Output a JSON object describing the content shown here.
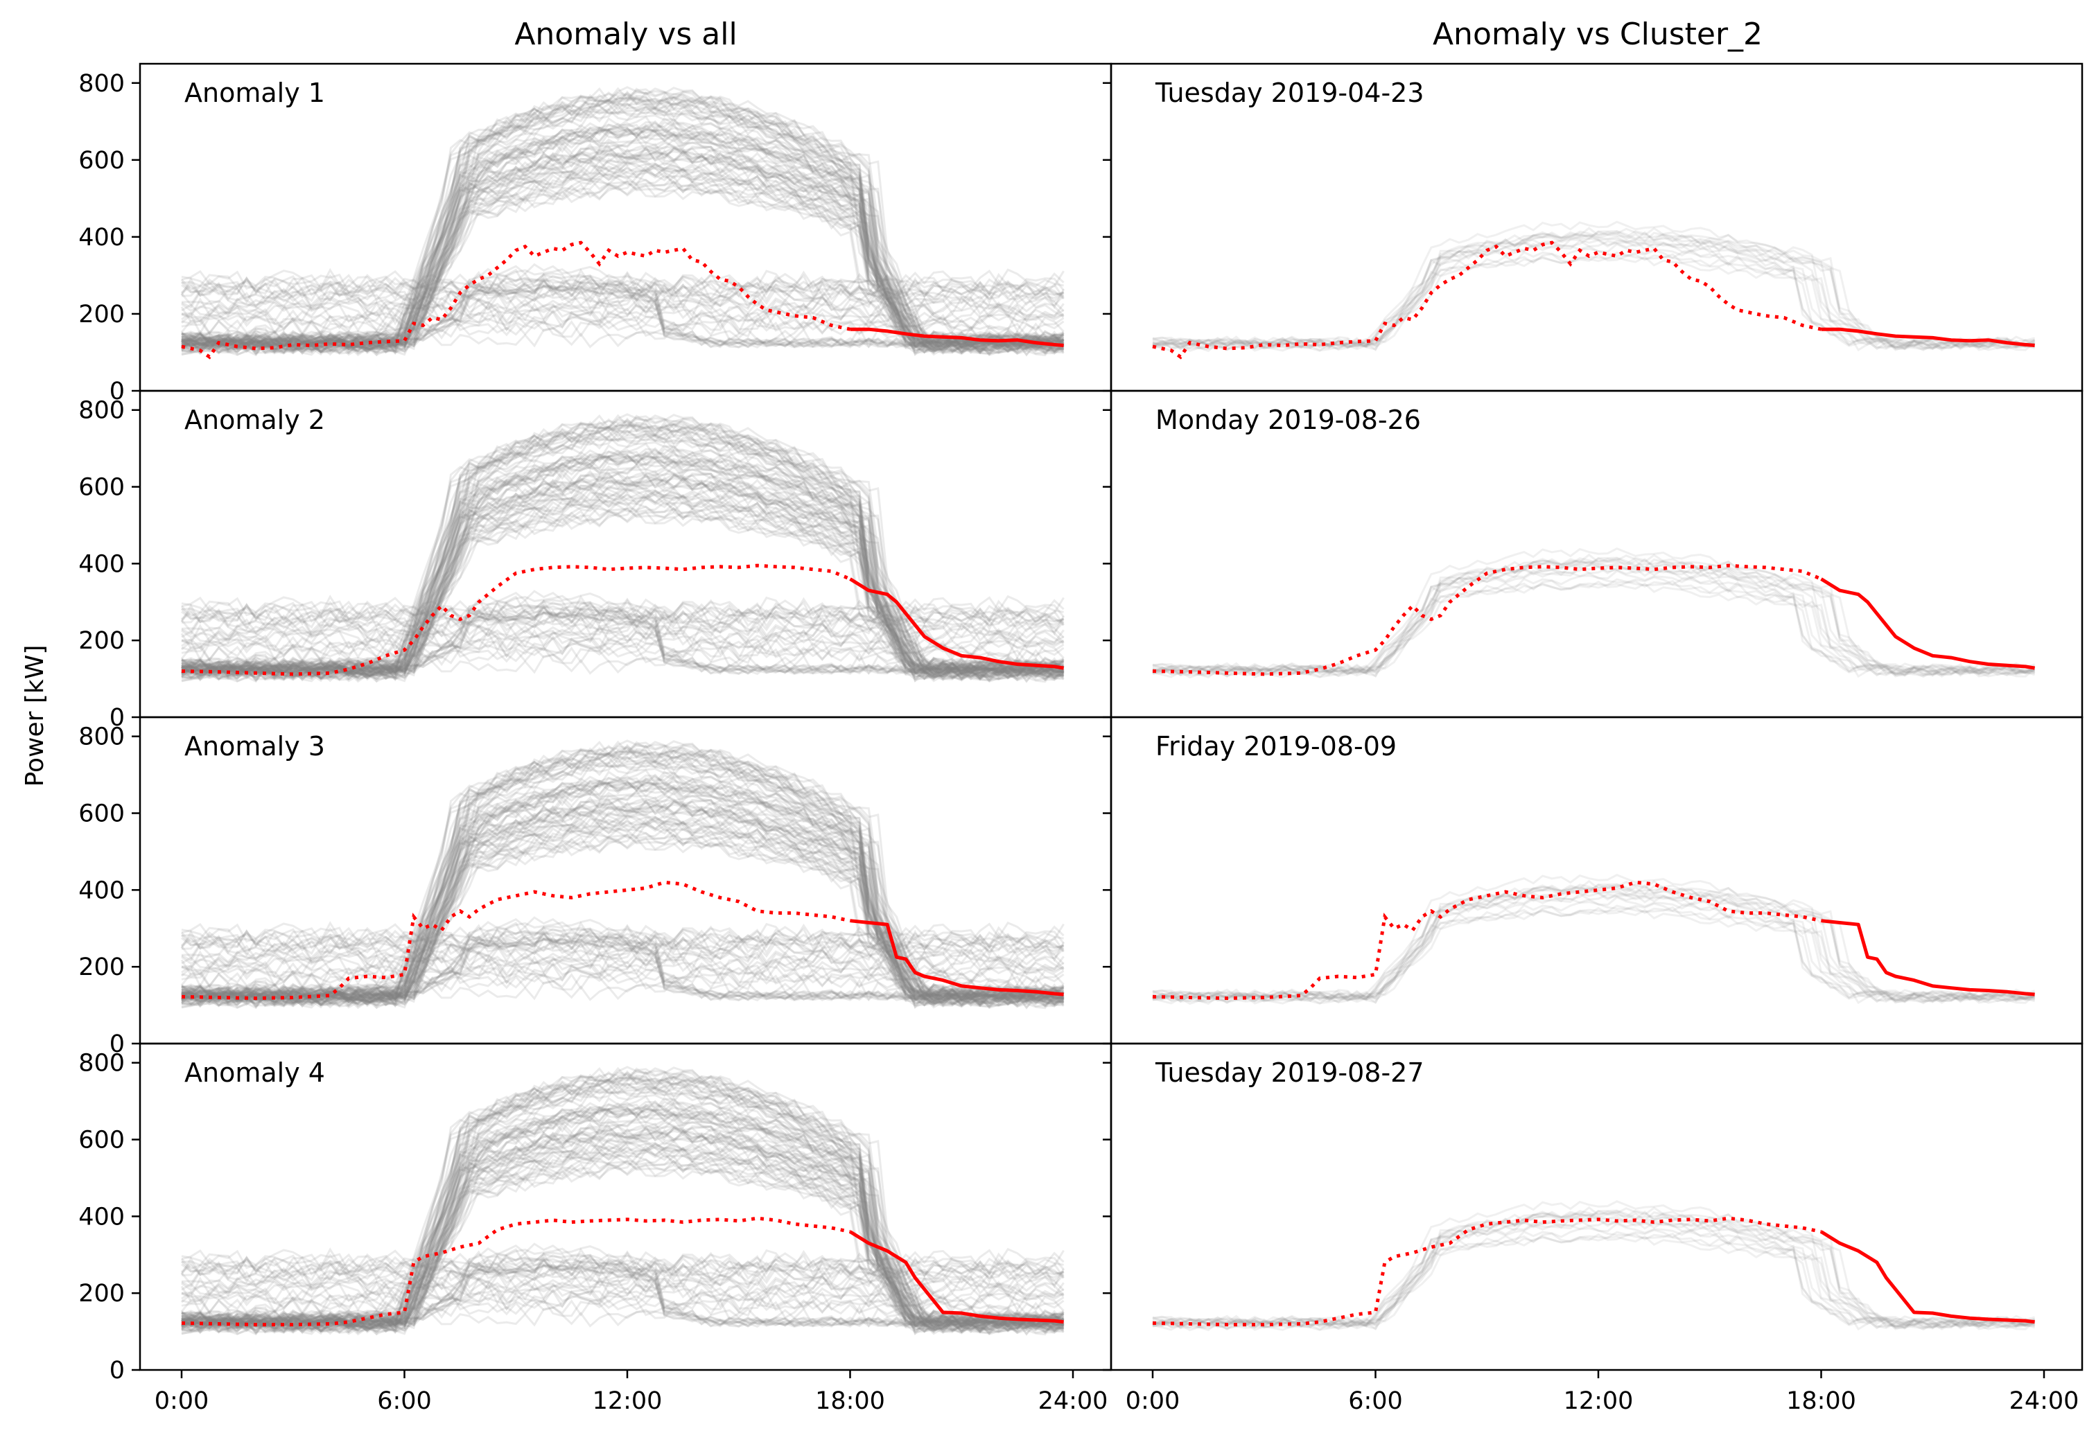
{
  "figure": {
    "column_titles": [
      "Anomaly vs all",
      "Anomaly vs Cluster_2"
    ],
    "ylabel": "Power [kW]"
  },
  "colors": {
    "background_curves": "#808080",
    "anomaly_curve": "#ff0000",
    "axes": "#000000"
  },
  "chart_data": [
    {
      "type": "line",
      "panel": "Anomaly 1",
      "column": "Anomaly vs all",
      "label": "Anomaly 1",
      "xlim": [
        0,
        24
      ],
      "ylim": [
        0,
        850
      ],
      "xticks": [
        0,
        6,
        12,
        18,
        24
      ],
      "xticklabels": [
        "0:00",
        "6:00",
        "12:00",
        "18:00",
        "24:00"
      ],
      "yticks": [
        0,
        200,
        400,
        600,
        800
      ],
      "background": "all",
      "series": [
        {
          "x": [
            0,
            0.5,
            0.75,
            1,
            1.5,
            2,
            2.5,
            3,
            3.5,
            4,
            4.5,
            5,
            5.5,
            6,
            6.25,
            6.5,
            6.75,
            7,
            7.25,
            7.5,
            7.75,
            8,
            8.25,
            8.5,
            8.75,
            9,
            9.25,
            9.5,
            9.75,
            10,
            10.25,
            10.5,
            10.75,
            11,
            11.25,
            11.5,
            11.75,
            12,
            12.25,
            12.5,
            12.75,
            13,
            13.25,
            13.5,
            13.75,
            14,
            14.25,
            14.5,
            14.75,
            15,
            15.25,
            15.5,
            15.75,
            16,
            16.5,
            17,
            17.5,
            18,
            18.5,
            19,
            19.5,
            20,
            20.5,
            21,
            21.5,
            22,
            22.5,
            23,
            23.5,
            23.75
          ],
          "y": [
            115,
            105,
            88,
            125,
            115,
            110,
            112,
            120,
            118,
            122,
            120,
            125,
            128,
            130,
            175,
            170,
            190,
            185,
            215,
            255,
            275,
            290,
            300,
            320,
            340,
            365,
            375,
            350,
            360,
            370,
            365,
            380,
            385,
            360,
            330,
            365,
            350,
            360,
            355,
            350,
            365,
            360,
            365,
            370,
            340,
            335,
            310,
            290,
            285,
            270,
            245,
            225,
            210,
            205,
            195,
            190,
            170,
            160,
            160,
            155,
            148,
            142,
            140,
            138,
            132,
            130,
            132,
            125,
            120,
            118
          ],
          "dotted_until_x": 18
        }
      ]
    },
    {
      "type": "line",
      "panel": "Anomaly 1 cluster",
      "column": "Anomaly vs Cluster_2",
      "label": "Tuesday 2019-04-23",
      "xlim": [
        0,
        24
      ],
      "ylim": [
        0,
        850
      ],
      "xticks": [
        0,
        6,
        12,
        18,
        24
      ],
      "xticklabels": [
        "0:00",
        "6:00",
        "12:00",
        "18:00",
        "24:00"
      ],
      "yticks": [
        0,
        200,
        400,
        600,
        800
      ],
      "background": "cluster",
      "series": [
        {
          "same_as_panel": 0,
          "dotted_until_x": 18
        }
      ]
    },
    {
      "type": "line",
      "panel": "Anomaly 2",
      "column": "Anomaly vs all",
      "label": "Anomaly 2",
      "xlim": [
        0,
        24
      ],
      "ylim": [
        0,
        850
      ],
      "xticks": [
        0,
        6,
        12,
        18,
        24
      ],
      "xticklabels": [
        "0:00",
        "6:00",
        "12:00",
        "18:00",
        "24:00"
      ],
      "yticks": [
        0,
        200,
        400,
        600,
        800
      ],
      "background": "all",
      "series": [
        {
          "x": [
            0,
            1,
            2,
            3,
            4,
            4.5,
            5,
            5.5,
            6,
            6.25,
            6.5,
            6.75,
            7,
            7.25,
            7.5,
            7.75,
            8,
            8.5,
            9,
            9.5,
            10,
            10.5,
            11,
            11.5,
            12,
            12.5,
            13,
            13.5,
            14,
            14.5,
            15,
            15.5,
            16,
            16.5,
            17,
            17.5,
            18,
            18.5,
            19,
            19.25,
            19.5,
            19.75,
            20,
            20.5,
            21,
            21.5,
            22,
            22.5,
            23,
            23.5,
            23.75
          ],
          "y": [
            120,
            118,
            115,
            112,
            115,
            125,
            140,
            160,
            175,
            200,
            235,
            265,
            290,
            265,
            255,
            265,
            300,
            340,
            375,
            385,
            390,
            392,
            390,
            385,
            388,
            390,
            388,
            385,
            390,
            392,
            390,
            395,
            392,
            390,
            385,
            380,
            360,
            330,
            320,
            300,
            270,
            240,
            210,
            180,
            160,
            155,
            145,
            138,
            135,
            132,
            128
          ],
          "dotted_until_x": 18
        }
      ]
    },
    {
      "type": "line",
      "panel": "Anomaly 2 cluster",
      "column": "Anomaly vs Cluster_2",
      "label": "Monday 2019-08-26",
      "xlim": [
        0,
        24
      ],
      "ylim": [
        0,
        850
      ],
      "xticks": [
        0,
        6,
        12,
        18,
        24
      ],
      "xticklabels": [
        "0:00",
        "6:00",
        "12:00",
        "18:00",
        "24:00"
      ],
      "yticks": [
        0,
        200,
        400,
        600,
        800
      ],
      "background": "cluster",
      "series": [
        {
          "same_as_panel": 2,
          "dotted_until_x": 18
        }
      ]
    },
    {
      "type": "line",
      "panel": "Anomaly 3",
      "column": "Anomaly vs all",
      "label": "Anomaly 3",
      "xlim": [
        0,
        24
      ],
      "ylim": [
        0,
        850
      ],
      "xticks": [
        0,
        6,
        12,
        18,
        24
      ],
      "xticklabels": [
        "0:00",
        "6:00",
        "12:00",
        "18:00",
        "24:00"
      ],
      "yticks": [
        0,
        200,
        400,
        600,
        800
      ],
      "background": "all",
      "series": [
        {
          "x": [
            0,
            1,
            2,
            3,
            4,
            4.25,
            4.5,
            5,
            5.5,
            6,
            6.25,
            6.5,
            6.75,
            7,
            7.25,
            7.5,
            7.75,
            8,
            8.5,
            9,
            9.5,
            10,
            10.5,
            11,
            11.5,
            12,
            12.5,
            13,
            13.5,
            14,
            14.5,
            15,
            15.5,
            16,
            16.5,
            17,
            17.5,
            18,
            18.5,
            19,
            19.25,
            19.5,
            19.75,
            20,
            20.5,
            21,
            21.5,
            22,
            22.5,
            23,
            23.5,
            23.75
          ],
          "y": [
            122,
            120,
            118,
            120,
            125,
            145,
            170,
            175,
            172,
            180,
            330,
            300,
            310,
            295,
            330,
            345,
            330,
            350,
            375,
            385,
            395,
            385,
            380,
            390,
            395,
            400,
            405,
            420,
            415,
            395,
            380,
            370,
            345,
            340,
            340,
            335,
            330,
            320,
            315,
            310,
            225,
            220,
            185,
            175,
            165,
            150,
            145,
            140,
            138,
            135,
            130,
            128
          ],
          "dotted_until_x": 18
        }
      ]
    },
    {
      "type": "line",
      "panel": "Anomaly 3 cluster",
      "column": "Anomaly vs Cluster_2",
      "label": "Friday 2019-08-09",
      "xlim": [
        0,
        24
      ],
      "ylim": [
        0,
        850
      ],
      "xticks": [
        0,
        6,
        12,
        18,
        24
      ],
      "xticklabels": [
        "0:00",
        "6:00",
        "12:00",
        "18:00",
        "24:00"
      ],
      "yticks": [
        0,
        200,
        400,
        600,
        800
      ],
      "background": "cluster",
      "series": [
        {
          "same_as_panel": 4,
          "dotted_until_x": 18
        }
      ]
    },
    {
      "type": "line",
      "panel": "Anomaly 4",
      "column": "Anomaly vs all",
      "label": "Anomaly 4",
      "xlim": [
        0,
        24
      ],
      "ylim": [
        0,
        850
      ],
      "xticks": [
        0,
        6,
        12,
        18,
        24
      ],
      "xticklabels": [
        "0:00",
        "6:00",
        "12:00",
        "18:00",
        "24:00"
      ],
      "yticks": [
        0,
        200,
        400,
        600,
        800
      ],
      "background": "all",
      "series": [
        {
          "x": [
            0,
            1,
            2,
            3,
            4,
            4.5,
            5,
            5.5,
            6,
            6.25,
            6.5,
            6.75,
            7,
            7.5,
            8,
            8.5,
            9,
            9.5,
            10,
            10.5,
            11,
            11.5,
            12,
            12.5,
            13,
            13.5,
            14,
            14.5,
            15,
            15.5,
            16,
            16.5,
            17,
            17.5,
            18,
            18.5,
            19,
            19.25,
            19.5,
            19.75,
            20,
            20.5,
            21,
            21.5,
            22,
            22.5,
            23,
            23.5,
            23.75
          ],
          "y": [
            122,
            120,
            118,
            118,
            120,
            125,
            135,
            145,
            150,
            280,
            295,
            300,
            305,
            320,
            330,
            365,
            380,
            385,
            390,
            385,
            388,
            390,
            392,
            388,
            390,
            385,
            390,
            392,
            388,
            395,
            390,
            380,
            375,
            370,
            360,
            330,
            310,
            295,
            280,
            240,
            210,
            150,
            148,
            140,
            135,
            132,
            130,
            128,
            125
          ],
          "dotted_until_x": 18
        }
      ]
    },
    {
      "type": "line",
      "panel": "Anomaly 4 cluster",
      "column": "Anomaly vs Cluster_2",
      "label": "Tuesday 2019-08-27",
      "xlim": [
        0,
        24
      ],
      "ylim": [
        0,
        850
      ],
      "xticks": [
        0,
        6,
        12,
        18,
        24
      ],
      "xticklabels": [
        "0:00",
        "6:00",
        "12:00",
        "18:00",
        "24:00"
      ],
      "yticks": [
        0,
        200,
        400,
        600,
        800
      ],
      "background": "cluster",
      "series": [
        {
          "same_as_panel": 6,
          "dotted_until_x": 18
        }
      ]
    }
  ]
}
